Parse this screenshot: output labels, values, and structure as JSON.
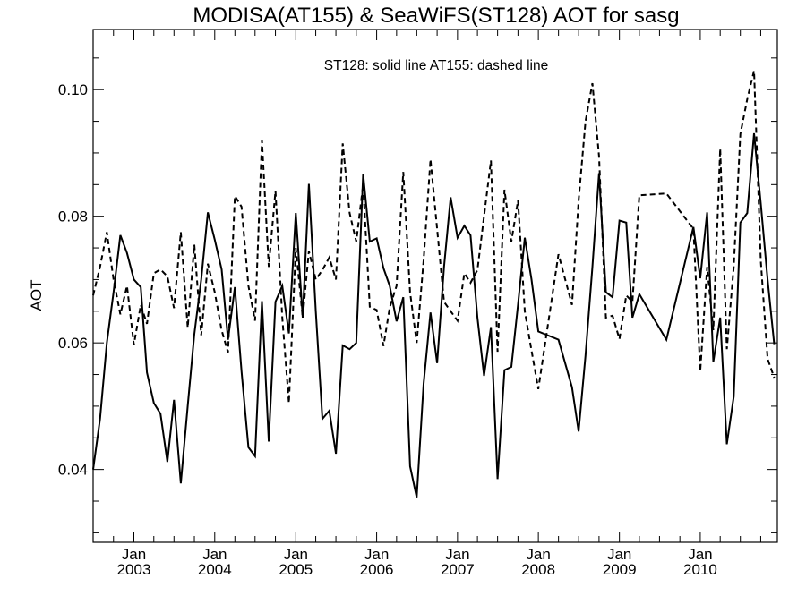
{
  "chart_data": {
    "type": "line",
    "title": "MODISA(AT155) & SeaWiFS(ST128)  AOT for sasg",
    "annotation": "ST128: solid line   AT155: dashed line",
    "ylabel": "AOT",
    "xlabel": "",
    "ylim": [
      0.0285,
      0.1095
    ],
    "xlim": [
      "2002-07-01",
      "2010-12-15"
    ],
    "yticks": [
      0.04,
      0.06,
      0.08,
      0.1
    ],
    "ytick_labels": [
      "0.04",
      "0.06",
      "0.08",
      "0.10"
    ],
    "xticks": [
      {
        "date": "2003-01-01",
        "month": "Jan",
        "year": "2003"
      },
      {
        "date": "2004-01-01",
        "month": "Jan",
        "year": "2004"
      },
      {
        "date": "2005-01-01",
        "month": "Jan",
        "year": "2005"
      },
      {
        "date": "2006-01-01",
        "month": "Jan",
        "year": "2006"
      },
      {
        "date": "2007-01-01",
        "month": "Jan",
        "year": "2007"
      },
      {
        "date": "2008-01-01",
        "month": "Jan",
        "year": "2008"
      },
      {
        "date": "2009-01-01",
        "month": "Jan",
        "year": "2009"
      },
      {
        "date": "2010-01-01",
        "month": "Jan",
        "year": "2010"
      }
    ],
    "grid": false,
    "series": [
      {
        "name": "ST128",
        "line_style": "solid",
        "color": "#000000",
        "points": [
          [
            "2002-07-01",
            0.04
          ],
          [
            "2002-08-01",
            0.048
          ],
          [
            "2002-09-01",
            0.06
          ],
          [
            "2002-10-01",
            0.068
          ],
          [
            "2002-11-01",
            0.077
          ],
          [
            "2002-12-01",
            0.0742
          ],
          [
            "2003-01-01",
            0.07
          ],
          [
            "2003-02-01",
            0.0688
          ],
          [
            "2003-03-01",
            0.0553
          ],
          [
            "2003-04-01",
            0.0505
          ],
          [
            "2003-05-01",
            0.0488
          ],
          [
            "2003-06-01",
            0.0412
          ],
          [
            "2003-07-01",
            0.051
          ],
          [
            "2003-08-01",
            0.0378
          ],
          [
            "2003-09-01",
            0.05
          ],
          [
            "2003-10-01",
            0.0614
          ],
          [
            "2003-11-01",
            0.07
          ],
          [
            "2003-12-01",
            0.0806
          ],
          [
            "2004-01-01",
            0.0763
          ],
          [
            "2004-02-01",
            0.0716
          ],
          [
            "2004-03-01",
            0.0605
          ],
          [
            "2004-04-01",
            0.0688
          ],
          [
            "2004-05-01",
            0.0555
          ],
          [
            "2004-06-01",
            0.0435
          ],
          [
            "2004-07-01",
            0.0421
          ],
          [
            "2004-08-01",
            0.0666
          ],
          [
            "2004-09-01",
            0.0444
          ],
          [
            "2004-10-01",
            0.0665
          ],
          [
            "2004-11-01",
            0.069
          ],
          [
            "2004-12-01",
            0.0615
          ],
          [
            "2005-01-01",
            0.0805
          ],
          [
            "2005-02-01",
            0.064
          ],
          [
            "2005-03-01",
            0.0851
          ],
          [
            "2005-04-01",
            0.065
          ],
          [
            "2005-05-01",
            0.048
          ],
          [
            "2005-06-01",
            0.0493
          ],
          [
            "2005-07-01",
            0.0425
          ],
          [
            "2005-08-01",
            0.0596
          ],
          [
            "2005-09-01",
            0.059
          ],
          [
            "2005-10-01",
            0.06
          ],
          [
            "2005-11-01",
            0.0867
          ],
          [
            "2005-12-01",
            0.076
          ],
          [
            "2006-01-01",
            0.0765
          ],
          [
            "2006-02-01",
            0.0718
          ],
          [
            "2006-03-01",
            0.069
          ],
          [
            "2006-04-01",
            0.0634
          ],
          [
            "2006-05-01",
            0.0672
          ],
          [
            "2006-06-01",
            0.0405
          ],
          [
            "2006-07-01",
            0.0356
          ],
          [
            "2006-08-01",
            0.0535
          ],
          [
            "2006-09-01",
            0.0648
          ],
          [
            "2006-10-01",
            0.0568
          ],
          [
            "2006-11-01",
            0.072
          ],
          [
            "2006-12-01",
            0.083
          ],
          [
            "2007-01-01",
            0.0766
          ],
          [
            "2007-02-01",
            0.0785
          ],
          [
            "2007-03-01",
            0.077
          ],
          [
            "2007-04-01",
            0.064
          ],
          [
            "2007-05-01",
            0.0548
          ],
          [
            "2007-06-01",
            0.0625
          ],
          [
            "2007-07-01",
            0.0385
          ],
          [
            "2007-08-01",
            0.0557
          ],
          [
            "2007-09-01",
            0.0562
          ],
          [
            "2007-10-01",
            0.066
          ],
          [
            "2007-11-01",
            0.0766
          ],
          [
            "2007-12-01",
            0.07
          ],
          [
            "2008-01-01",
            0.0618
          ],
          [
            "2008-04-01",
            0.0605
          ],
          [
            "2008-06-01",
            0.053
          ],
          [
            "2008-07-01",
            0.046
          ],
          [
            "2008-08-01",
            0.058
          ],
          [
            "2008-09-01",
            0.072
          ],
          [
            "2008-10-01",
            0.0868
          ],
          [
            "2008-11-01",
            0.068
          ],
          [
            "2008-12-01",
            0.0672
          ],
          [
            "2009-01-01",
            0.0793
          ],
          [
            "2009-02-01",
            0.079
          ],
          [
            "2009-03-01",
            0.064
          ],
          [
            "2009-04-01",
            0.0677
          ],
          [
            "2009-08-01",
            0.0605
          ],
          [
            "2009-12-01",
            0.0783
          ],
          [
            "2010-01-01",
            0.0702
          ],
          [
            "2010-02-01",
            0.0806
          ],
          [
            "2010-03-01",
            0.057
          ],
          [
            "2010-04-01",
            0.064
          ],
          [
            "2010-05-01",
            0.044
          ],
          [
            "2010-06-01",
            0.0515
          ],
          [
            "2010-07-01",
            0.079
          ],
          [
            "2010-08-01",
            0.0805
          ],
          [
            "2010-09-01",
            0.0931
          ],
          [
            "2010-10-01",
            0.082
          ],
          [
            "2010-11-01",
            0.07
          ],
          [
            "2010-12-01",
            0.0598
          ]
        ]
      },
      {
        "name": "AT155",
        "line_style": "dashed",
        "color": "#000000",
        "points": [
          [
            "2002-07-01",
            0.0675
          ],
          [
            "2002-08-01",
            0.072
          ],
          [
            "2002-09-01",
            0.0775
          ],
          [
            "2002-10-01",
            0.07
          ],
          [
            "2002-11-01",
            0.0645
          ],
          [
            "2002-12-01",
            0.069
          ],
          [
            "2003-01-01",
            0.0597
          ],
          [
            "2003-02-01",
            0.066
          ],
          [
            "2003-03-01",
            0.063
          ],
          [
            "2003-04-01",
            0.071
          ],
          [
            "2003-05-01",
            0.0716
          ],
          [
            "2003-06-01",
            0.0705
          ],
          [
            "2003-07-01",
            0.0655
          ],
          [
            "2003-08-01",
            0.0775
          ],
          [
            "2003-09-01",
            0.0624
          ],
          [
            "2003-10-01",
            0.0755
          ],
          [
            "2003-11-01",
            0.0612
          ],
          [
            "2003-12-01",
            0.0725
          ],
          [
            "2004-01-01",
            0.068
          ],
          [
            "2004-02-01",
            0.062
          ],
          [
            "2004-03-01",
            0.0585
          ],
          [
            "2004-04-01",
            0.0832
          ],
          [
            "2004-05-01",
            0.0815
          ],
          [
            "2004-06-01",
            0.069
          ],
          [
            "2004-07-01",
            0.0635
          ],
          [
            "2004-08-01",
            0.092
          ],
          [
            "2004-09-01",
            0.072
          ],
          [
            "2004-10-01",
            0.084
          ],
          [
            "2004-11-01",
            0.064
          ],
          [
            "2004-12-01",
            0.0505
          ],
          [
            "2005-01-01",
            0.075
          ],
          [
            "2005-02-01",
            0.064
          ],
          [
            "2005-03-01",
            0.0745
          ],
          [
            "2005-04-01",
            0.07
          ],
          [
            "2005-05-01",
            0.0715
          ],
          [
            "2005-06-01",
            0.0735
          ],
          [
            "2005-07-01",
            0.07
          ],
          [
            "2005-08-01",
            0.0915
          ],
          [
            "2005-09-01",
            0.0805
          ],
          [
            "2005-10-01",
            0.076
          ],
          [
            "2005-11-01",
            0.085
          ],
          [
            "2005-12-01",
            0.0657
          ],
          [
            "2006-01-01",
            0.0652
          ],
          [
            "2006-02-01",
            0.0595
          ],
          [
            "2006-03-01",
            0.0656
          ],
          [
            "2006-04-01",
            0.069
          ],
          [
            "2006-05-01",
            0.087
          ],
          [
            "2006-06-01",
            0.068
          ],
          [
            "2006-07-01",
            0.06
          ],
          [
            "2006-08-01",
            0.073
          ],
          [
            "2006-09-01",
            0.089
          ],
          [
            "2006-10-01",
            0.078
          ],
          [
            "2006-11-01",
            0.0665
          ],
          [
            "2006-12-01",
            0.065
          ],
          [
            "2007-01-01",
            0.0635
          ],
          [
            "2007-02-01",
            0.071
          ],
          [
            "2007-03-01",
            0.0695
          ],
          [
            "2007-04-01",
            0.0715
          ],
          [
            "2007-05-01",
            0.08
          ],
          [
            "2007-06-01",
            0.0888
          ],
          [
            "2007-07-01",
            0.0586
          ],
          [
            "2007-08-01",
            0.0842
          ],
          [
            "2007-09-01",
            0.076
          ],
          [
            "2007-10-01",
            0.0825
          ],
          [
            "2007-11-01",
            0.065
          ],
          [
            "2007-12-01",
            0.0588
          ],
          [
            "2008-01-01",
            0.0527
          ],
          [
            "2008-04-01",
            0.074
          ],
          [
            "2008-06-01",
            0.066
          ],
          [
            "2008-07-01",
            0.0825
          ],
          [
            "2008-08-01",
            0.095
          ],
          [
            "2008-09-01",
            0.101
          ],
          [
            "2008-10-01",
            0.0895
          ],
          [
            "2008-11-01",
            0.064
          ],
          [
            "2008-12-01",
            0.0643
          ],
          [
            "2009-01-01",
            0.0606
          ],
          [
            "2009-02-01",
            0.0675
          ],
          [
            "2009-03-01",
            0.0665
          ],
          [
            "2009-04-01",
            0.0833
          ],
          [
            "2009-08-01",
            0.0836
          ],
          [
            "2009-12-01",
            0.078
          ],
          [
            "2010-01-01",
            0.0555
          ],
          [
            "2010-02-01",
            0.072
          ],
          [
            "2010-03-01",
            0.062
          ],
          [
            "2010-04-01",
            0.0907
          ],
          [
            "2010-05-01",
            0.059
          ],
          [
            "2010-06-01",
            0.072
          ],
          [
            "2010-07-01",
            0.093
          ],
          [
            "2010-08-01",
            0.0985
          ],
          [
            "2010-09-01",
            0.103
          ],
          [
            "2010-10-01",
            0.073
          ],
          [
            "2010-11-01",
            0.0575
          ],
          [
            "2010-12-01",
            0.0545
          ]
        ]
      }
    ]
  }
}
